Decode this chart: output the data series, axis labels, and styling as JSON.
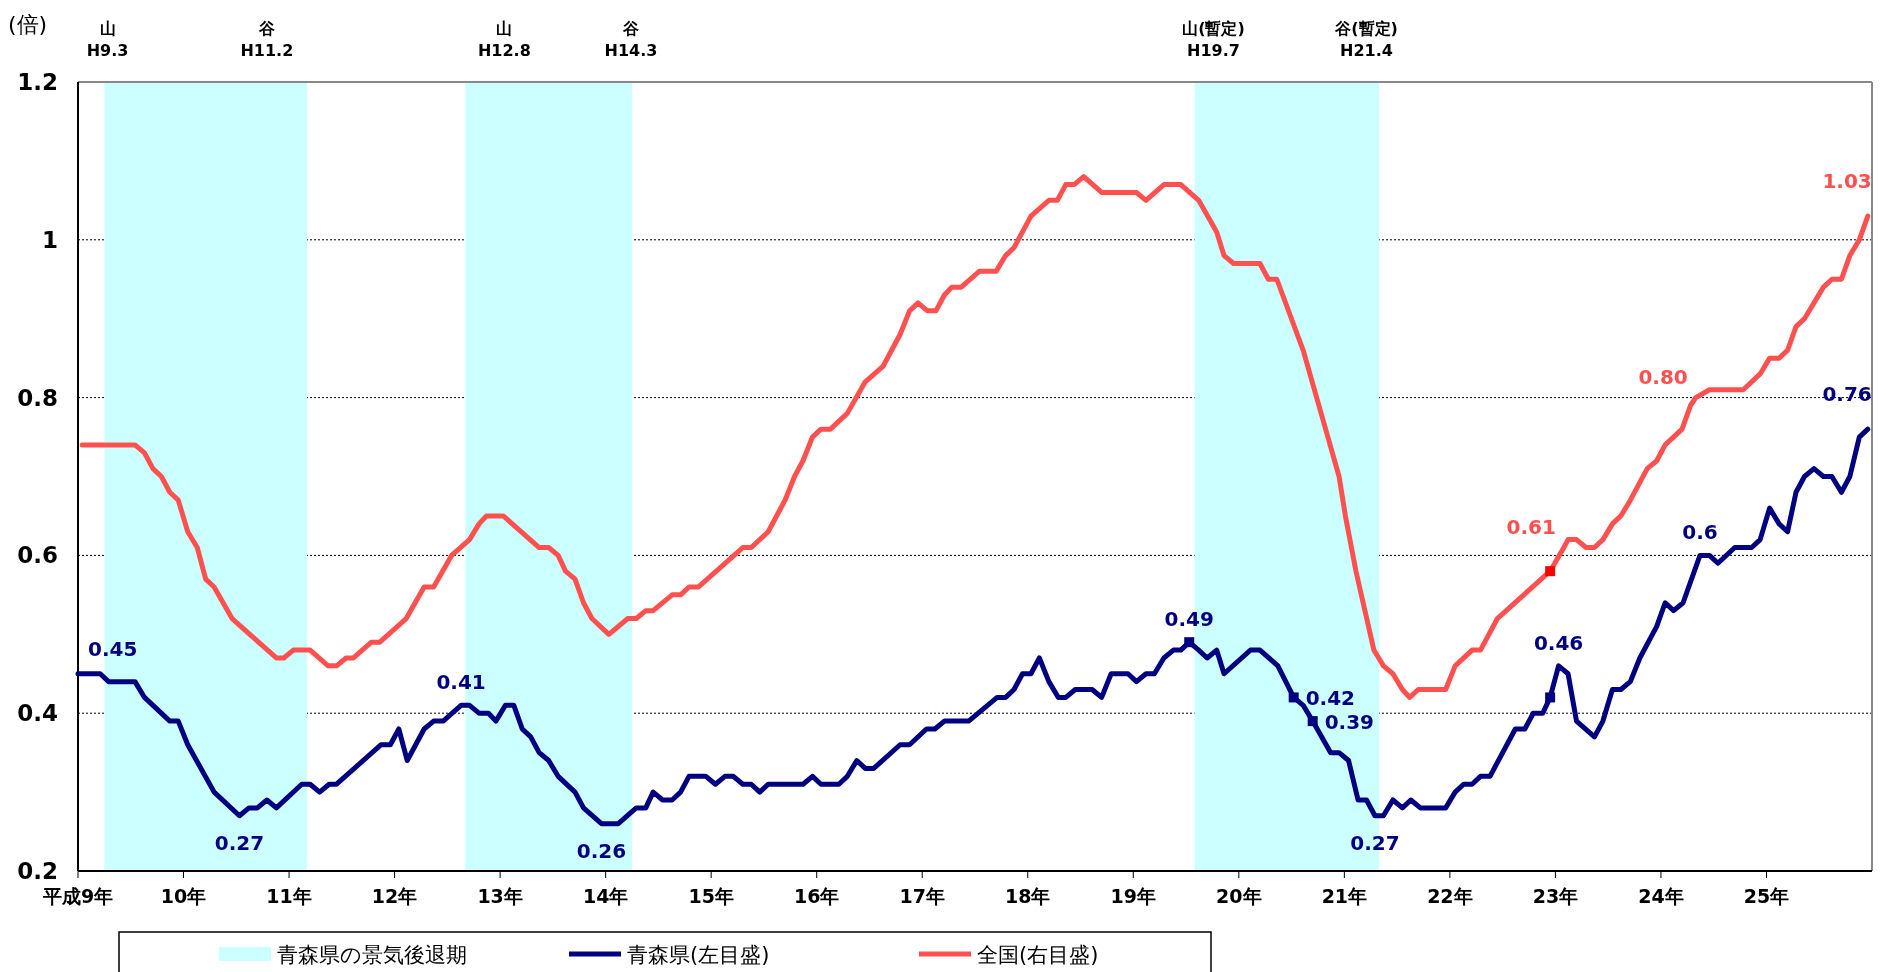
{
  "chart_data": {
    "type": "line",
    "ylabel": "(倍)",
    "xlim": [
      9,
      26
    ],
    "xticks": [
      {
        "value": 9,
        "label": "平成9年"
      },
      {
        "value": 10,
        "label": "10年"
      },
      {
        "value": 11,
        "label": "11年"
      },
      {
        "value": 12,
        "label": "12年"
      },
      {
        "value": 13,
        "label": "13年"
      },
      {
        "value": 14,
        "label": "14年"
      },
      {
        "value": 15,
        "label": "15年"
      },
      {
        "value": 16,
        "label": "16年"
      },
      {
        "value": 17,
        "label": "17年"
      },
      {
        "value": 18,
        "label": "18年"
      },
      {
        "value": 19,
        "label": "19年"
      },
      {
        "value": 20,
        "label": "20年"
      },
      {
        "value": 21,
        "label": "21年"
      },
      {
        "value": 22,
        "label": "22年"
      },
      {
        "value": 23,
        "label": "23年"
      },
      {
        "value": 24,
        "label": "24年"
      },
      {
        "value": 25,
        "label": "25年"
      }
    ],
    "ylim": [
      0.2,
      1.2
    ],
    "yticks": [
      0.2,
      0.4,
      0.6,
      0.8,
      1,
      1.2
    ],
    "grid": "y",
    "legend": "bottom",
    "line_style": "solid",
    "marker": "none",
    "bands": [
      {
        "axis": "x",
        "from": 9.25,
        "to": 11.17,
        "label": "青森県の景気後退期",
        "color": "#ccffff"
      },
      {
        "axis": "x",
        "from": 12.67,
        "to": 14.25,
        "color": "#ccffff"
      },
      {
        "axis": "x",
        "from": 19.58,
        "to": 21.33,
        "color": "#ccffff"
      }
    ],
    "annotations": [
      {
        "text": "山\nH9.3",
        "x": 9.28,
        "y": 1.2
      },
      {
        "text": "谷\nH11.2",
        "x": 10.79,
        "y": 1.2
      },
      {
        "text": "山\nH12.8",
        "x": 13.04,
        "y": 1.2
      },
      {
        "text": "谷\nH14.3",
        "x": 14.24,
        "y": 1.2
      },
      {
        "text": "山(暫定)\nH19.7",
        "x": 19.76,
        "y": 1.2
      },
      {
        "text": "谷(暫定)\nH21.4",
        "x": 21.21,
        "y": 1.2
      }
    ],
    "series": [
      {
        "name": "青森県(左目盛)",
        "color": "#000080",
        "x": [
          9,
          9.21,
          9.29,
          9.54,
          9.63,
          9.87,
          9.95,
          10.04,
          10.29,
          10.53,
          10.62,
          10.7,
          10.79,
          10.88,
          11.12,
          11.2,
          11.29,
          11.38,
          11.45,
          11.87,
          11.96,
          12.04,
          12.12,
          12.28,
          12.37,
          12.46,
          12.63,
          12.71,
          12.8,
          12.89,
          12.96,
          13.05,
          13.13,
          13.21,
          13.29,
          13.37,
          13.46,
          13.55,
          13.71,
          13.79,
          13.96,
          14.12,
          14.29,
          14.38,
          14.45,
          14.54,
          14.63,
          14.71,
          14.79,
          14.95,
          15.04,
          15.13,
          15.21,
          15.3,
          15.38,
          15.46,
          15.54,
          15.87,
          15.96,
          16.04,
          16.21,
          16.29,
          16.38,
          16.46,
          16.54,
          16.79,
          16.88,
          17.04,
          17.12,
          17.21,
          17.44,
          17.71,
          17.79,
          17.87,
          17.95,
          18.03,
          18.11,
          18.2,
          18.29,
          18.36,
          18.45,
          18.61,
          18.7,
          18.79,
          18.95,
          19.03,
          19.12,
          19.2,
          19.29,
          19.38,
          19.45,
          19.53,
          19.62,
          19.7,
          19.79,
          19.86,
          20.11,
          20.2,
          20.37,
          20.52,
          20.61,
          20.7,
          20.87,
          20.95,
          21.04,
          21.13,
          21.21,
          21.29,
          21.37,
          21.46,
          21.55,
          21.63,
          21.72,
          21.96,
          22.05,
          22.13,
          22.21,
          22.29,
          22.38,
          22.62,
          22.71,
          22.79,
          22.88,
          22.95,
          23.03,
          23.12,
          23.2,
          23.37,
          23.45,
          23.54,
          23.62,
          23.71,
          23.8,
          23.96,
          24.04,
          24.12,
          24.21,
          24.37,
          24.46,
          24.54,
          24.7,
          24.86,
          24.94,
          25.03,
          25.12,
          25.2,
          25.28,
          25.36,
          25.45,
          25.54,
          25.62,
          25.71,
          25.79,
          25.88,
          25.96
        ],
        "values": [
          0.45,
          0.45,
          0.44,
          0.44,
          0.42,
          0.39,
          0.39,
          0.36,
          0.3,
          0.27,
          0.28,
          0.28,
          0.29,
          0.28,
          0.31,
          0.31,
          0.3,
          0.31,
          0.31,
          0.36,
          0.36,
          0.38,
          0.34,
          0.38,
          0.39,
          0.39,
          0.41,
          0.41,
          0.4,
          0.4,
          0.39,
          0.41,
          0.41,
          0.38,
          0.37,
          0.35,
          0.34,
          0.32,
          0.3,
          0.28,
          0.26,
          0.26,
          0.28,
          0.28,
          0.3,
          0.29,
          0.29,
          0.3,
          0.32,
          0.32,
          0.31,
          0.32,
          0.32,
          0.31,
          0.31,
          0.3,
          0.31,
          0.31,
          0.32,
          0.31,
          0.31,
          0.32,
          0.34,
          0.33,
          0.33,
          0.36,
          0.36,
          0.38,
          0.38,
          0.39,
          0.39,
          0.42,
          0.42,
          0.43,
          0.45,
          0.45,
          0.47,
          0.44,
          0.42,
          0.42,
          0.43,
          0.43,
          0.42,
          0.45,
          0.45,
          0.44,
          0.45,
          0.45,
          0.47,
          0.48,
          0.48,
          0.49,
          0.48,
          0.47,
          0.48,
          0.45,
          0.48,
          0.48,
          0.46,
          0.42,
          0.41,
          0.39,
          0.35,
          0.35,
          0.34,
          0.29,
          0.29,
          0.27,
          0.27,
          0.29,
          0.28,
          0.29,
          0.28,
          0.28,
          0.3,
          0.31,
          0.31,
          0.32,
          0.32,
          0.38,
          0.38,
          0.4,
          0.4,
          0.42,
          0.46,
          0.45,
          0.39,
          0.37,
          0.39,
          0.43,
          0.43,
          0.44,
          0.47,
          0.51,
          0.54,
          0.53,
          0.54,
          0.6,
          0.6,
          0.59,
          0.61,
          0.61,
          0.62,
          0.66,
          0.64,
          0.63,
          0.68,
          0.7,
          0.71,
          0.7,
          0.7,
          0.68,
          0.7,
          0.75,
          0.76
        ],
        "value_labels": [
          "0.45",
          null,
          null,
          null,
          null,
          null,
          null,
          null,
          null,
          "0.27",
          null,
          null,
          null,
          null,
          null,
          null,
          null,
          null,
          null,
          null,
          null,
          null,
          null,
          null,
          null,
          null,
          "0.41",
          null,
          null,
          null,
          null,
          null,
          null,
          null,
          null,
          null,
          null,
          null,
          null,
          null,
          "0.26",
          null,
          null,
          null,
          null,
          null,
          null,
          null,
          null,
          null,
          null,
          null,
          null,
          null,
          null,
          null,
          null,
          null,
          null,
          null,
          null,
          null,
          null,
          null,
          null,
          null,
          null,
          null,
          null,
          null,
          null,
          null,
          null,
          null,
          null,
          null,
          null,
          null,
          null,
          null,
          null,
          null,
          null,
          null,
          null,
          null,
          null,
          null,
          null,
          null,
          null,
          "0.49",
          null,
          null,
          null,
          null,
          null,
          null,
          null,
          "0.42",
          null,
          "0.39",
          null,
          null,
          null,
          null,
          null,
          "0.27",
          null,
          null,
          null,
          null,
          null,
          null,
          null,
          null,
          null,
          null,
          null,
          null,
          null,
          null,
          null,
          null,
          "0.46",
          null,
          null,
          null,
          null,
          null,
          null,
          null,
          null,
          null,
          null,
          null,
          null,
          "0.6",
          null,
          null,
          null,
          null,
          null,
          null,
          null,
          null,
          null,
          null,
          null,
          null,
          null,
          null,
          null,
          null,
          "0.76"
        ]
      },
      {
        "name": "全国(右目盛)",
        "color": "#ff5050",
        "x": [
          9.04,
          9.54,
          9.63,
          9.71,
          9.79,
          9.87,
          9.95,
          10.04,
          10.13,
          10.21,
          10.29,
          10.46,
          10.88,
          10.95,
          11.04,
          11.2,
          11.37,
          11.45,
          11.54,
          11.61,
          11.78,
          11.86,
          12.11,
          12.28,
          12.37,
          12.54,
          12.71,
          12.8,
          12.87,
          13.03,
          13.37,
          13.46,
          13.55,
          13.62,
          13.71,
          13.79,
          13.87,
          14.03,
          14.21,
          14.29,
          14.38,
          14.45,
          14.63,
          14.71,
          14.79,
          14.88,
          15.3,
          15.38,
          15.54,
          15.7,
          15.79,
          15.87,
          15.96,
          16.04,
          16.13,
          16.29,
          16.46,
          16.63,
          16.79,
          16.88,
          16.96,
          17.05,
          17.13,
          17.21,
          17.28,
          17.37,
          17.54,
          17.7,
          17.79,
          17.87,
          18.03,
          18.2,
          18.28,
          18.36,
          18.44,
          18.53,
          18.7,
          19.03,
          19.12,
          19.29,
          19.45,
          19.62,
          19.79,
          19.86,
          19.95,
          20.2,
          20.28,
          20.36,
          20.61,
          20.78,
          20.95,
          21.01,
          21.11,
          21.28,
          21.37,
          21.46,
          21.55,
          21.62,
          21.7,
          21.96,
          22.05,
          22.21,
          22.29,
          22.45,
          22.95,
          23.08,
          23.12,
          23.2,
          23.29,
          23.37,
          23.45,
          23.54,
          23.62,
          23.71,
          23.87,
          23.96,
          24.04,
          24.2,
          24.28,
          24.33,
          24.46,
          24.78,
          24.94,
          25.03,
          25.12,
          25.2,
          25.28,
          25.36,
          25.54,
          25.62,
          25.71,
          25.79,
          25.88,
          25.96
        ],
        "values": [
          0.74,
          0.74,
          0.73,
          0.71,
          0.7,
          0.68,
          0.67,
          0.63,
          0.61,
          0.57,
          0.56,
          0.52,
          0.47,
          0.47,
          0.48,
          0.48,
          0.46,
          0.46,
          0.47,
          0.47,
          0.49,
          0.49,
          0.52,
          0.56,
          0.56,
          0.6,
          0.62,
          0.64,
          0.65,
          0.65,
          0.61,
          0.61,
          0.6,
          0.58,
          0.57,
          0.54,
          0.52,
          0.5,
          0.52,
          0.52,
          0.53,
          0.53,
          0.55,
          0.55,
          0.56,
          0.56,
          0.61,
          0.61,
          0.63,
          0.67,
          0.7,
          0.72,
          0.75,
          0.76,
          0.76,
          0.78,
          0.82,
          0.84,
          0.88,
          0.91,
          0.92,
          0.91,
          0.91,
          0.93,
          0.94,
          0.94,
          0.96,
          0.96,
          0.98,
          0.99,
          1.03,
          1.05,
          1.05,
          1.07,
          1.07,
          1.08,
          1.06,
          1.06,
          1.05,
          1.07,
          1.07,
          1.05,
          1.01,
          0.98,
          0.97,
          0.97,
          0.95,
          0.95,
          0.86,
          0.78,
          0.7,
          0.65,
          0.58,
          0.48,
          0.46,
          0.45,
          0.43,
          0.42,
          0.43,
          0.43,
          0.46,
          0.48,
          0.48,
          0.52,
          0.58,
          0.61,
          0.62,
          0.62,
          0.61,
          0.61,
          0.62,
          0.64,
          0.65,
          0.67,
          0.71,
          0.72,
          0.74,
          0.76,
          0.79,
          0.8,
          0.81,
          0.81,
          0.83,
          0.85,
          0.85,
          0.86,
          0.89,
          0.9,
          0.94,
          0.95,
          0.95,
          0.98,
          1,
          1.03
        ],
        "value_labels": [
          null,
          null,
          null,
          null,
          null,
          null,
          null,
          null,
          null,
          null,
          null,
          null,
          null,
          null,
          null,
          null,
          null,
          null,
          null,
          null,
          null,
          null,
          null,
          null,
          null,
          null,
          null,
          null,
          null,
          null,
          null,
          null,
          null,
          null,
          null,
          null,
          null,
          null,
          null,
          null,
          null,
          null,
          null,
          null,
          null,
          null,
          null,
          null,
          null,
          null,
          null,
          null,
          null,
          null,
          null,
          null,
          null,
          null,
          null,
          null,
          null,
          null,
          null,
          null,
          null,
          null,
          null,
          null,
          null,
          null,
          null,
          null,
          null,
          null,
          null,
          null,
          null,
          null,
          null,
          null,
          null,
          null,
          null,
          null,
          null,
          null,
          null,
          null,
          null,
          null,
          null,
          null,
          null,
          null,
          null,
          null,
          null,
          null,
          null,
          null,
          null,
          null,
          null,
          null,
          null,
          "0.61",
          null,
          null,
          null,
          null,
          null,
          null,
          null,
          null,
          null,
          null,
          null,
          null,
          null,
          "0.80",
          null,
          null,
          null,
          null,
          null,
          null,
          null,
          null,
          null,
          null,
          null,
          null,
          null,
          "1.03"
        ]
      },
      {
        "type": "scatter",
        "marker": "square",
        "color": "#000080",
        "x": [
          19.53,
          20.52,
          20.7,
          22.95
        ],
        "values": [
          0.49,
          0.42,
          0.39,
          0.42
        ]
      },
      {
        "type": "scatter",
        "marker": "square",
        "color": "#ff0000",
        "x": [
          22.95
        ],
        "values": [
          0.58
        ]
      }
    ]
  }
}
